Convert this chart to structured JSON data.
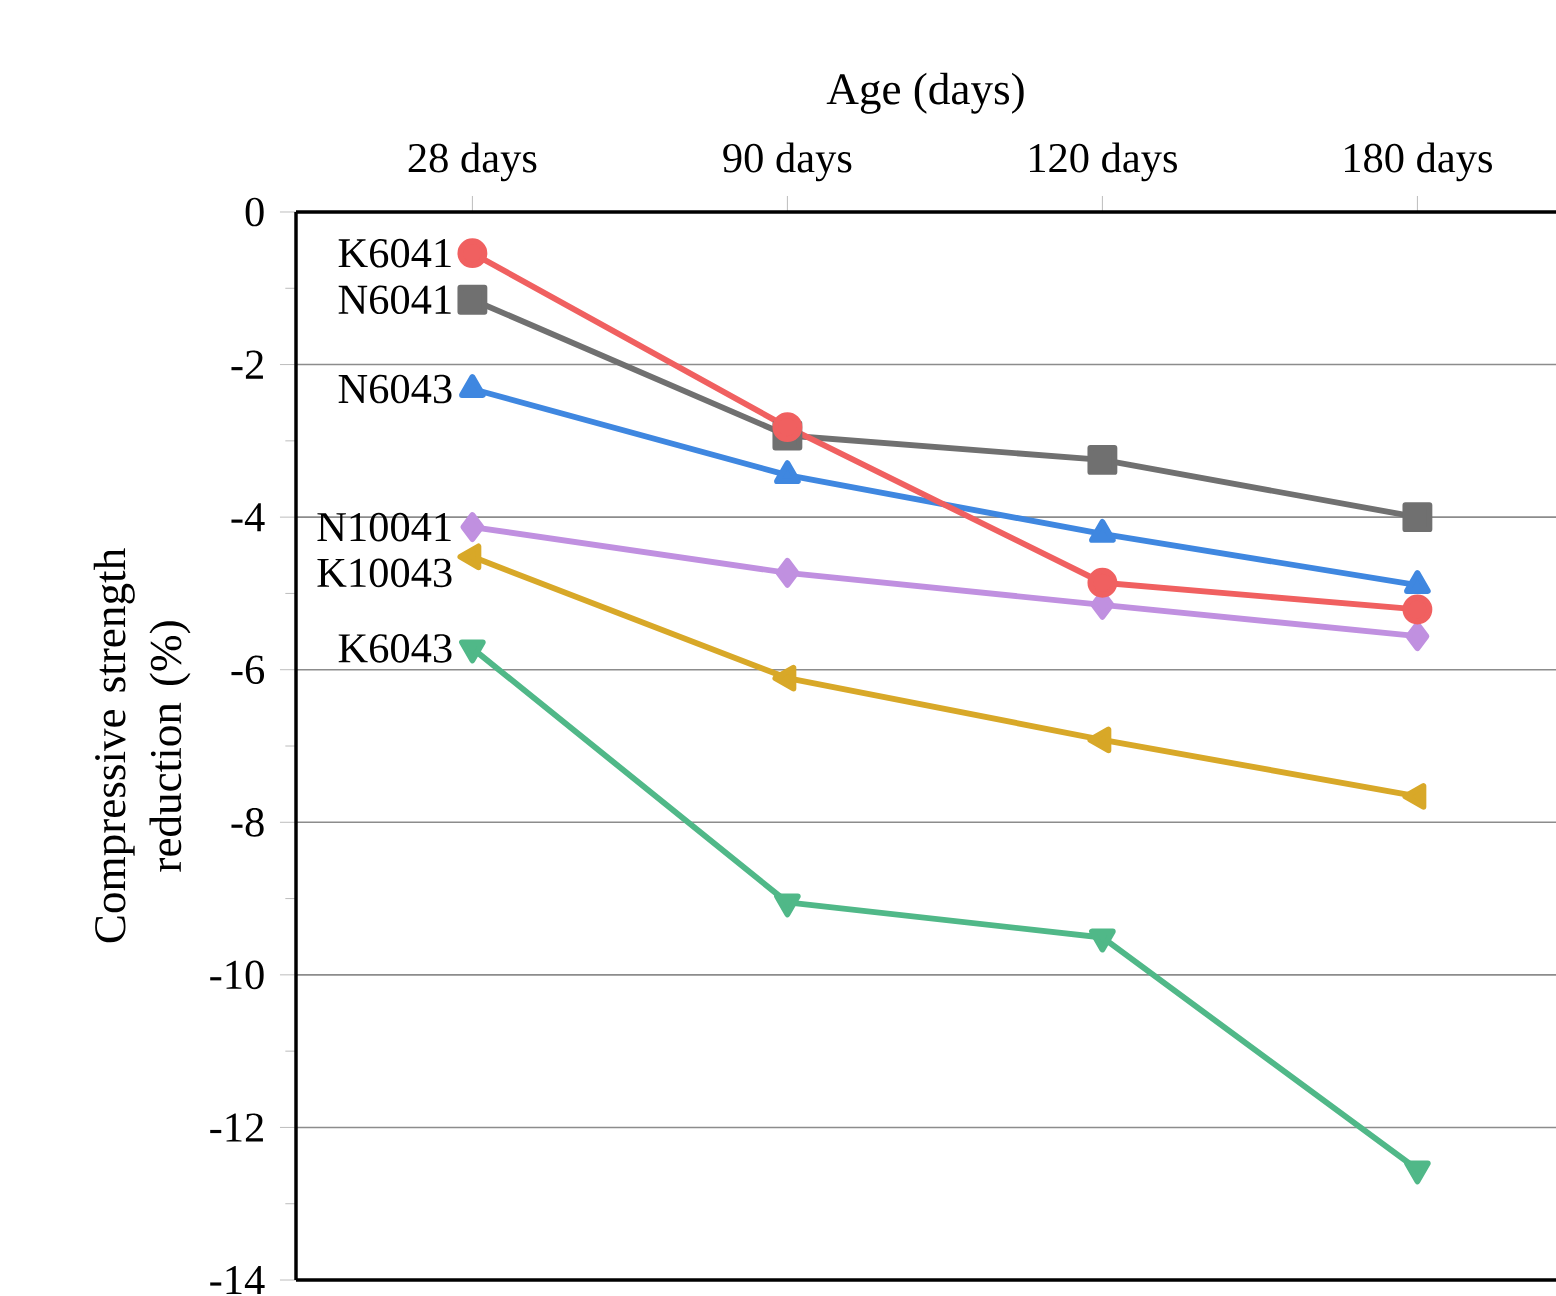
{
  "chart_data": {
    "type": "line",
    "xlabel": "Age (days)",
    "ylabel": "Compressive strength reduction (%)",
    "categories": [
      "28 days",
      "90 days",
      "120 days",
      "180 days"
    ],
    "ylim": [
      -14,
      0
    ],
    "yticks": [
      -14,
      -12,
      -10,
      -8,
      -6,
      -4,
      -2,
      0
    ],
    "grid": "y",
    "series": [
      {
        "name": "K6041",
        "color": "#f06060",
        "marker": "circle",
        "values": [
          -0.54,
          -2.82,
          -4.86,
          -5.21
        ]
      },
      {
        "name": "N6041",
        "color": "#707070",
        "marker": "square",
        "values": [
          -1.15,
          -2.93,
          -3.25,
          -4.0
        ]
      },
      {
        "name": "N6043",
        "color": "#3f87e0",
        "marker": "triangle",
        "values": [
          -2.32,
          -3.45,
          -4.22,
          -4.89
        ]
      },
      {
        "name": "N10041",
        "color": "#c090e0",
        "marker": "diamond",
        "values": [
          -4.13,
          -4.73,
          -5.15,
          -5.56
        ]
      },
      {
        "name": "K10043",
        "color": "#d8a828",
        "marker": "triangle-left",
        "values": [
          -4.52,
          -6.11,
          -6.92,
          -7.66
        ]
      },
      {
        "name": "K6043",
        "color": "#50b888",
        "marker": "triangle-down",
        "values": [
          -5.72,
          -9.05,
          -9.51,
          -12.55
        ]
      }
    ]
  }
}
